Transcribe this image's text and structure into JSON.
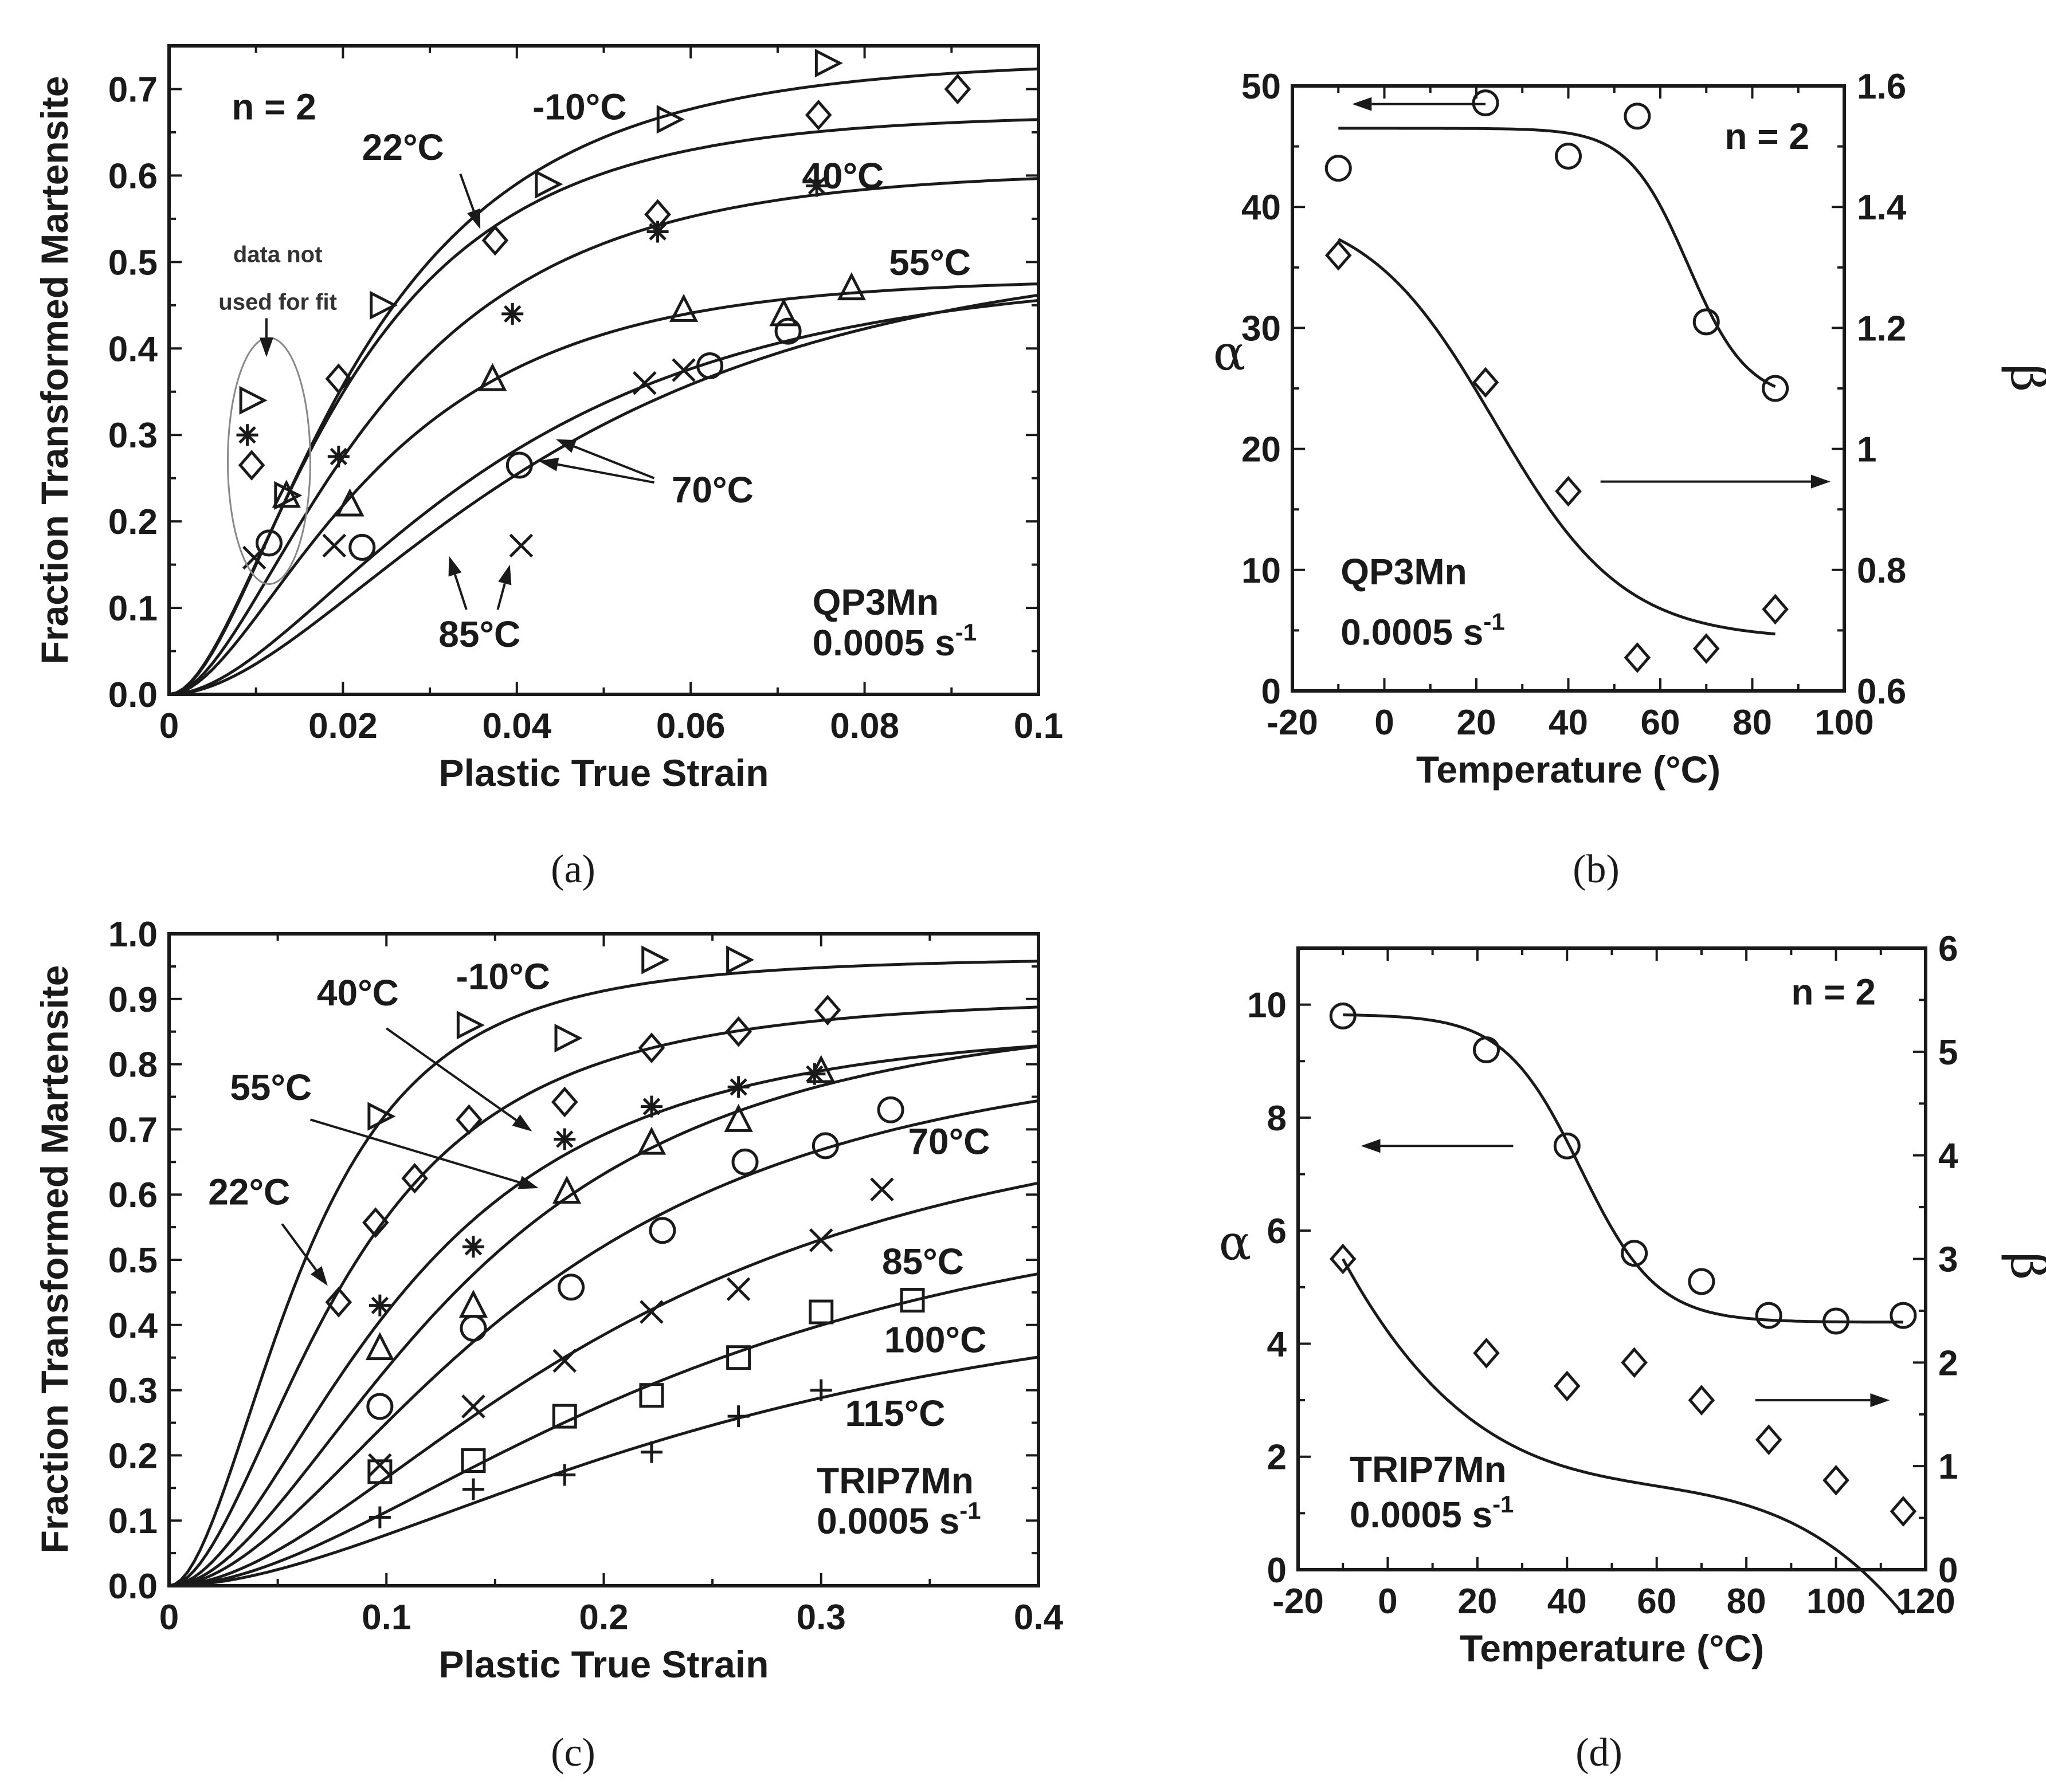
{
  "chart_data": [
    {
      "panel": "(a)",
      "type": "scatter",
      "xlabel": "Plastic True Strain",
      "ylabel": "Fraction Transformed Martensite",
      "xlim": [
        0,
        0.1
      ],
      "ylim": [
        0,
        0.75
      ],
      "xticks": [
        "0",
        "0.02",
        "0.04",
        "0.06",
        "0.08",
        "0.1"
      ],
      "yticks": [
        "0.0",
        "0.1",
        "0.2",
        "0.3",
        "0.4",
        "0.5",
        "0.6",
        "0.7"
      ],
      "annotations": {
        "n": "n = 2",
        "material": "QP3Mn",
        "rate": "0.0005 s",
        "rate_exp": "-1",
        "excluded_note_line1": "data not",
        "excluded_note_line2": "used for fit"
      },
      "series": [
        {
          "name": "-10°C",
          "marker": "triangle-right",
          "alpha": 43.2,
          "beta": 1.32,
          "points": [
            [
              0.0095,
              0.34
            ],
            [
              0.0135,
              0.23
            ],
            [
              0.0245,
              0.45
            ],
            [
              0.0435,
              0.59
            ],
            [
              0.0575,
              0.665
            ],
            [
              0.0757,
              0.73
            ]
          ]
        },
        {
          "name": "22°C",
          "marker": "diamond",
          "alpha": 48.6,
          "beta": 1.11,
          "points": [
            [
              0.0095,
              0.265
            ],
            [
              0.0195,
              0.365
            ],
            [
              0.0375,
              0.525
            ],
            [
              0.0562,
              0.555
            ],
            [
              0.0747,
              0.67
            ],
            [
              0.0907,
              0.7
            ]
          ]
        },
        {
          "name": "40°C",
          "marker": "asterisk",
          "alpha": 44.2,
          "beta": 0.93,
          "points": [
            [
              0.009,
              0.3
            ],
            [
              0.0195,
              0.275
            ],
            [
              0.0395,
              0.44
            ],
            [
              0.0562,
              0.535
            ],
            [
              0.0745,
              0.588
            ]
          ]
        },
        {
          "name": "55°C",
          "marker": "triangle-up",
          "alpha": 47.5,
          "beta": 0.655,
          "points": [
            [
              0.0135,
              0.23
            ],
            [
              0.0208,
              0.22
            ],
            [
              0.0372,
              0.365
            ],
            [
              0.0592,
              0.445
            ],
            [
              0.0707,
              0.44
            ],
            [
              0.0785,
              0.47
            ]
          ]
        },
        {
          "name": "70°C",
          "marker": "circle",
          "alpha": 30.5,
          "beta": 0.67,
          "points": [
            [
              0.0115,
              0.175
            ],
            [
              0.0222,
              0.17
            ],
            [
              0.0403,
              0.265
            ],
            [
              0.0622,
              0.38
            ],
            [
              0.0712,
              0.42
            ]
          ]
        },
        {
          "name": "85°C",
          "marker": "cross",
          "alpha": 25.0,
          "beta": 0.735,
          "points": [
            [
              0.0098,
              0.158
            ],
            [
              0.019,
              0.172
            ],
            [
              0.0405,
              0.172
            ],
            [
              0.0547,
              0.36
            ],
            [
              0.0592,
              0.375
            ]
          ]
        }
      ],
      "curve_labels": [
        "-10°C",
        "22°C",
        "40°C",
        "55°C",
        "70°C",
        "85°C"
      ]
    },
    {
      "panel": "(b)",
      "type": "scatter",
      "xlabel": "Temperature (°C)",
      "ylabel": "α",
      "y2label": "β",
      "xlim": [
        -20,
        100
      ],
      "ylim": [
        0,
        50
      ],
      "y2lim": [
        0.6,
        1.6
      ],
      "xticks": [
        "-20",
        "0",
        "20",
        "40",
        "60",
        "80",
        "100"
      ],
      "yticks": [
        "0",
        "10",
        "20",
        "30",
        "40",
        "50"
      ],
      "y2ticks": [
        "0.6",
        "0.8",
        "1",
        "1.2",
        "1.4",
        "1.6"
      ],
      "annotations": {
        "n": "n = 2",
        "material": "QP3Mn",
        "rate": "0.0005 s",
        "rate_exp": "-1"
      },
      "series": [
        {
          "name": "α",
          "marker": "circle",
          "axis": "left",
          "x": [
            -10,
            22,
            40,
            55,
            70,
            85
          ],
          "values": [
            43.2,
            48.6,
            44.2,
            47.5,
            30.5,
            25.0
          ]
        },
        {
          "name": "β",
          "marker": "diamond",
          "axis": "right",
          "x": [
            -10,
            22,
            40,
            55,
            70,
            85
          ],
          "values": [
            1.32,
            1.11,
            0.93,
            0.655,
            0.67,
            0.735
          ]
        }
      ]
    },
    {
      "panel": "(c)",
      "type": "scatter",
      "xlabel": "Plastic True Strain",
      "ylabel": "Fraction Transformed Martensite",
      "xlim": [
        0,
        0.4
      ],
      "ylim": [
        0,
        1.0
      ],
      "xticks": [
        "0",
        "0.1",
        "0.2",
        "0.3",
        "0.4"
      ],
      "yticks": [
        "0.0",
        "0.1",
        "0.2",
        "0.3",
        "0.4",
        "0.5",
        "0.6",
        "0.7",
        "0.8",
        "0.9",
        "1.0"
      ],
      "annotations": {
        "material": "TRIP7Mn",
        "rate": "0.0005 s",
        "rate_exp": "-1"
      },
      "series": [
        {
          "name": "-10°C",
          "marker": "triangle-right",
          "alpha": 9.8,
          "beta": 3.3,
          "points": [
            [
              0.097,
              0.72
            ],
            [
              0.138,
              0.86
            ],
            [
              0.183,
              0.84
            ],
            [
              0.223,
              0.96
            ],
            [
              0.262,
              0.96
            ]
          ]
        },
        {
          "name": "22°C",
          "marker": "diamond",
          "alpha": 9.2,
          "beta": 2.3,
          "points": [
            [
              0.078,
              0.435
            ],
            [
              0.095,
              0.557
            ],
            [
              0.113,
              0.625
            ],
            [
              0.138,
              0.715
            ],
            [
              0.182,
              0.742
            ],
            [
              0.222,
              0.825
            ],
            [
              0.262,
              0.85
            ],
            [
              0.303,
              0.883
            ]
          ]
        },
        {
          "name": "40°C",
          "marker": "asterisk",
          "alpha": 7.5,
          "beta": 1.95,
          "points": [
            [
              0.097,
              0.43
            ],
            [
              0.14,
              0.52
            ],
            [
              0.182,
              0.685
            ],
            [
              0.222,
              0.735
            ],
            [
              0.262,
              0.765
            ],
            [
              0.297,
              0.785
            ]
          ]
        },
        {
          "name": "55°C",
          "marker": "triangle-up",
          "alpha": 5.6,
          "beta": 2.2,
          "points": [
            [
              0.097,
              0.365
            ],
            [
              0.14,
              0.43
            ],
            [
              0.183,
              0.605
            ],
            [
              0.222,
              0.68
            ],
            [
              0.262,
              0.715
            ],
            [
              0.3,
              0.79
            ]
          ]
        },
        {
          "name": "70°C",
          "marker": "circle",
          "alpha": 5.1,
          "beta": 1.8,
          "points": [
            [
              0.097,
              0.275
            ],
            [
              0.14,
              0.395
            ],
            [
              0.185,
              0.458
            ],
            [
              0.227,
              0.545
            ],
            [
              0.265,
              0.65
            ],
            [
              0.302,
              0.675
            ],
            [
              0.332,
              0.73
            ]
          ]
        },
        {
          "name": "85°C",
          "marker": "cross",
          "alpha": 4.5,
          "beta": 1.38,
          "points": [
            [
              0.097,
              0.185
            ],
            [
              0.14,
              0.275
            ],
            [
              0.182,
              0.345
            ],
            [
              0.222,
              0.42
            ],
            [
              0.262,
              0.455
            ],
            [
              0.3,
              0.53
            ],
            [
              0.328,
              0.608
            ]
          ]
        },
        {
          "name": "100°C",
          "marker": "square",
          "alpha": 4.4,
          "beta": 0.95,
          "points": [
            [
              0.097,
              0.175
            ],
            [
              0.14,
              0.192
            ],
            [
              0.182,
              0.26
            ],
            [
              0.222,
              0.292
            ],
            [
              0.262,
              0.35
            ],
            [
              0.3,
              0.42
            ],
            [
              0.342,
              0.438
            ]
          ]
        },
        {
          "name": "115°C",
          "marker": "plus",
          "alpha": 4.5,
          "beta": 0.62,
          "points": [
            [
              0.097,
              0.105
            ],
            [
              0.14,
              0.148
            ],
            [
              0.182,
              0.17
            ],
            [
              0.222,
              0.205
            ],
            [
              0.262,
              0.26
            ],
            [
              0.3,
              0.3
            ]
          ]
        }
      ],
      "curve_labels": [
        "-10°C",
        "40°C",
        "55°C",
        "22°C",
        "70°C",
        "85°C",
        "100°C",
        "115°C"
      ]
    },
    {
      "panel": "(d)",
      "type": "scatter",
      "xlabel": "Temperature (°C)",
      "ylabel": "α",
      "y2label": "β",
      "xlim": [
        -20,
        120
      ],
      "ylim": [
        0,
        11
      ],
      "y2lim": [
        0,
        6.6
      ],
      "xticks": [
        "-20",
        "0",
        "20",
        "40",
        "60",
        "80",
        "100",
        "120"
      ],
      "yticks": [
        "0",
        "2",
        "4",
        "6",
        "8",
        "10"
      ],
      "y2ticks": [
        "0",
        "1",
        "2",
        "3",
        "4",
        "5",
        "6"
      ],
      "annotations": {
        "n": "n = 2",
        "material": "TRIP7Mn",
        "rate": "0.0005 s",
        "rate_exp": "-1"
      },
      "series": [
        {
          "name": "α",
          "marker": "circle",
          "axis": "left",
          "x": [
            -10,
            22,
            40,
            55,
            70,
            85,
            100,
            115
          ],
          "values": [
            9.8,
            9.2,
            7.5,
            5.6,
            5.1,
            4.5,
            4.4,
            4.5
          ]
        },
        {
          "name": "β",
          "marker": "diamond",
          "axis": "right",
          "x": [
            -10,
            22,
            40,
            55,
            70,
            85,
            100,
            115
          ],
          "values": [
            3.3,
            2.3,
            1.95,
            2.2,
            1.8,
            1.38,
            0.95,
            0.62
          ]
        }
      ]
    }
  ],
  "captions": [
    "(a)",
    "(b)",
    "(c)",
    "(d)"
  ]
}
